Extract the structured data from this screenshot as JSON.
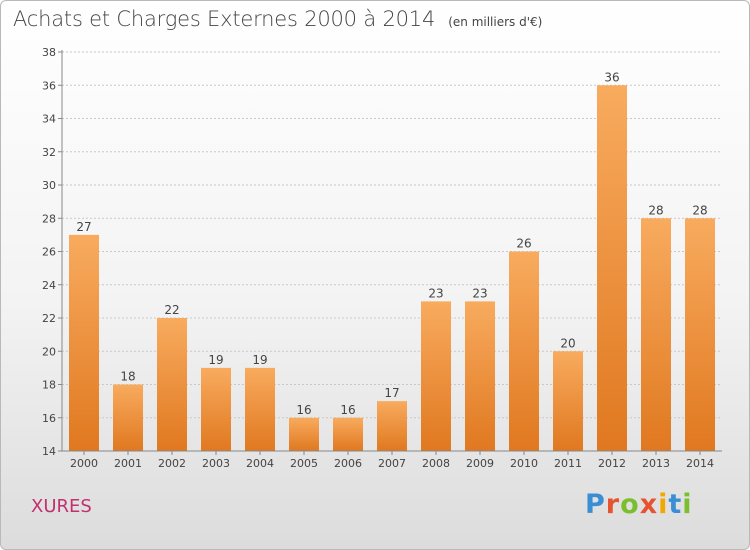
{
  "title": "Achats et Charges Externes 2000 à 2014",
  "subtitle": "(en milliers d'€)",
  "place": "XURES",
  "logo": {
    "letters": [
      "P",
      "r",
      "o",
      "x",
      "i",
      "t",
      "i"
    ],
    "colors": [
      "#3a8fd4",
      "#e5542e",
      "#7bbf2f",
      "#e5542e",
      "#f2a800",
      "#3a8fd4",
      "#7bbf2f"
    ]
  },
  "colors": {
    "bar_light": "#f8ab5e",
    "bar_dark": "#e07820",
    "grid": "#c8c8c8",
    "axis": "#888888",
    "text": "#444444"
  },
  "chart_data": {
    "type": "bar",
    "categories": [
      "2000",
      "2001",
      "2002",
      "2003",
      "2004",
      "2005",
      "2006",
      "2007",
      "2008",
      "2009",
      "2010",
      "2011",
      "2012",
      "2013",
      "2014"
    ],
    "values": [
      27,
      18,
      22,
      19,
      19,
      16,
      16,
      17,
      23,
      23,
      26,
      20,
      36,
      28,
      28
    ],
    "ylim": [
      14,
      38
    ],
    "yticks": [
      14,
      16,
      18,
      20,
      22,
      24,
      26,
      28,
      30,
      32,
      34,
      36,
      38
    ],
    "grid": true,
    "data_labels": true
  }
}
